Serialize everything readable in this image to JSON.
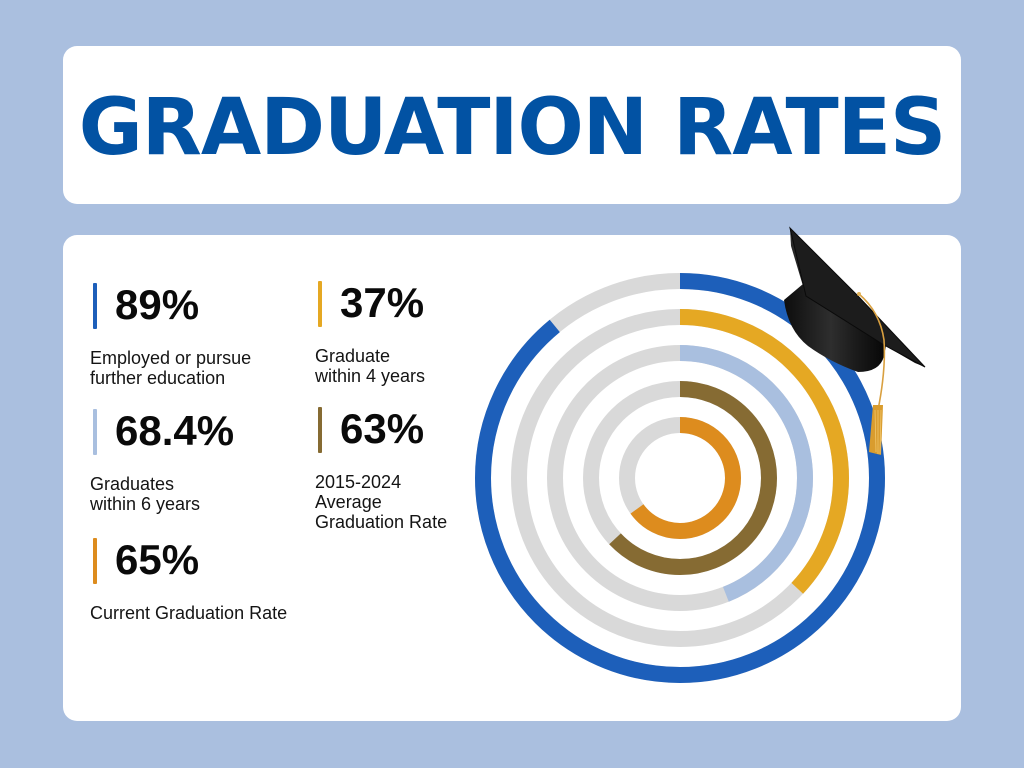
{
  "header": {
    "title": "GRADUATION RATES"
  },
  "stats": [
    {
      "value": "89%",
      "label": "Employed or pursue\nfurther education",
      "color": "#1D5FBA"
    },
    {
      "value": "37%",
      "label": "Graduate\nwithin 4 years",
      "color": "#E5A823"
    },
    {
      "value": "68.4%",
      "label": "Graduates\nwithin 6 years",
      "color": "#A9BFDF"
    },
    {
      "value": "63%",
      "label": "2015-2024\nAverage\nGraduation Rate",
      "color": "#866B33"
    },
    {
      "value": "65%",
      "label": "Current Graduation Rate",
      "color": "#DD8C1E"
    }
  ],
  "colors": {
    "background": "#AABFDF",
    "title": "#0252A3",
    "track": "#D9D9D9",
    "card": "#FFFFFF"
  },
  "decoration": {
    "icon": "graduation-cap-icon"
  },
  "chart_data": {
    "type": "radial-bar",
    "title": "Graduation Rates",
    "categories": [
      "Employed or pursue further education",
      "Graduate within 4 years",
      "Graduates within 6 years",
      "2015-2024 Average Graduation Rate",
      "Current Graduation Rate"
    ],
    "values": [
      89,
      37,
      68.4,
      63,
      65
    ],
    "units": "%",
    "ring_order": "outer-to-inner",
    "arc_fill_percent_as_drawn": [
      89,
      37,
      44,
      63,
      65
    ],
    "colors": [
      "#1D5FBA",
      "#E5A823",
      "#A9BFDF",
      "#866B33",
      "#DD8C1E"
    ],
    "track_color": "#D9D9D9",
    "start_angle": "12 o'clock, clockwise",
    "range": [
      0,
      100
    ],
    "legend": "left-side stat list"
  }
}
